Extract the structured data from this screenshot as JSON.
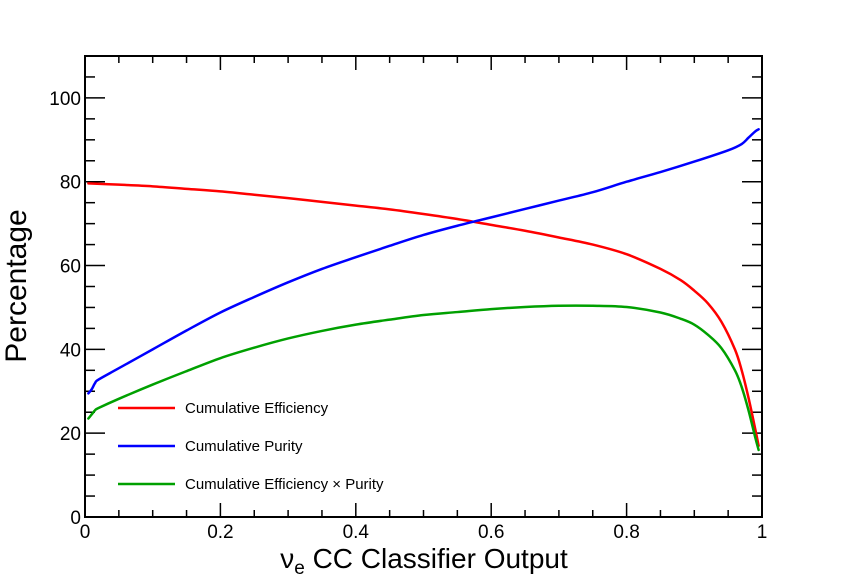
{
  "chart_data": {
    "type": "line",
    "title": "",
    "xlabel": {
      "symbol": "ν",
      "subscript": "e",
      "rest": " CC Classifier Output"
    },
    "ylabel": "Percentage",
    "xlim": [
      0,
      1
    ],
    "ylim": [
      0,
      110
    ],
    "x_major_ticks": [
      0,
      0.2,
      0.4,
      0.6,
      0.8,
      1
    ],
    "x_tick_labels": [
      "0",
      "0.2",
      "0.4",
      "0.6",
      "0.8",
      "1"
    ],
    "x_minor_step": 0.05,
    "y_major_ticks": [
      0,
      20,
      40,
      60,
      80,
      100
    ],
    "y_tick_labels": [
      "0",
      "20",
      "40",
      "60",
      "80",
      "100"
    ],
    "y_minor_step": 5,
    "grid": false,
    "legend_position": "bottom-left",
    "series": [
      {
        "name": "Cumulative Efficiency",
        "color": "#ff0000",
        "x": [
          0.005,
          0.05,
          0.1,
          0.15,
          0.2,
          0.25,
          0.3,
          0.35,
          0.4,
          0.45,
          0.5,
          0.55,
          0.6,
          0.65,
          0.7,
          0.75,
          0.8,
          0.85,
          0.88,
          0.9,
          0.92,
          0.94,
          0.96,
          0.97,
          0.98,
          0.99,
          0.995
        ],
        "values": [
          79.6,
          79.3,
          78.9,
          78.3,
          77.7,
          76.9,
          76.1,
          75.2,
          74.3,
          73.4,
          72.3,
          71.1,
          69.7,
          68.3,
          66.7,
          65.0,
          62.7,
          59.2,
          56.5,
          54.0,
          51.0,
          46.6,
          40.0,
          35.0,
          28.5,
          21.0,
          17.0
        ]
      },
      {
        "name": "Cumulative Purity",
        "color": "#0000ff",
        "x": [
          0.005,
          0.01,
          0.015,
          0.02,
          0.05,
          0.1,
          0.15,
          0.2,
          0.25,
          0.3,
          0.35,
          0.4,
          0.45,
          0.5,
          0.55,
          0.6,
          0.65,
          0.7,
          0.75,
          0.8,
          0.85,
          0.9,
          0.95,
          0.97,
          0.98,
          0.99,
          0.995
        ],
        "values": [
          29.5,
          30.5,
          32.0,
          32.8,
          35.5,
          40.0,
          44.5,
          48.8,
          52.5,
          56.0,
          59.2,
          62.0,
          64.7,
          67.3,
          69.5,
          71.5,
          73.5,
          75.5,
          77.5,
          80.0,
          82.3,
          84.8,
          87.5,
          89.0,
          90.5,
          92.0,
          92.5
        ]
      },
      {
        "name": "Cumulative Efficiency × Purity",
        "color": "#00a000",
        "x": [
          0.005,
          0.01,
          0.015,
          0.02,
          0.05,
          0.1,
          0.15,
          0.2,
          0.25,
          0.3,
          0.35,
          0.4,
          0.45,
          0.5,
          0.55,
          0.6,
          0.65,
          0.7,
          0.75,
          0.8,
          0.85,
          0.88,
          0.9,
          0.92,
          0.94,
          0.96,
          0.97,
          0.98,
          0.99,
          0.995
        ],
        "values": [
          23.5,
          24.5,
          25.5,
          26.0,
          28.2,
          31.6,
          34.8,
          37.9,
          40.4,
          42.6,
          44.4,
          45.9,
          47.1,
          48.2,
          48.9,
          49.6,
          50.1,
          50.4,
          50.4,
          50.1,
          48.8,
          47.3,
          45.9,
          43.5,
          40.3,
          35.0,
          31.0,
          25.5,
          19.0,
          16.0
        ]
      }
    ]
  }
}
